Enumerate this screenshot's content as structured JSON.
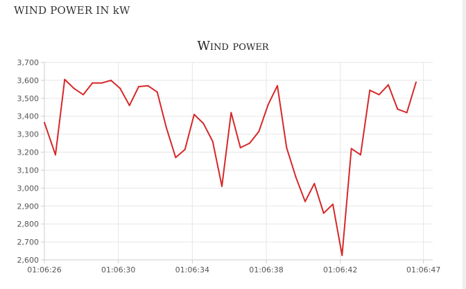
{
  "panel": {
    "title": "WIND POWER IN kW"
  },
  "chart_data": {
    "type": "line",
    "title": "Wind power",
    "xlabel": "",
    "ylabel": "",
    "ylim": [
      2600,
      3700
    ],
    "yticks": [
      3700,
      3600,
      3500,
      3400,
      3300,
      3200,
      3100,
      3000,
      2900,
      2800,
      2700,
      2600
    ],
    "ytick_labels": [
      "3,700",
      "3,600",
      "3,500",
      "3,400",
      "3,300",
      "3,200",
      "3,100",
      "3,000",
      "2,900",
      "2,800",
      "2,700",
      "2,600"
    ],
    "xlim": [
      0,
      21
    ],
    "xticks": [
      0,
      4,
      8,
      12,
      16,
      20.5
    ],
    "xtick_labels": [
      "01:06:26",
      "01:06:30",
      "01:06:34",
      "01:06:38",
      "01:06:42",
      "01:06:47"
    ],
    "grid": true,
    "line_color": "#d62728",
    "series": [
      {
        "x": [
          0,
          0.6,
          1.1,
          1.6,
          2.1,
          2.6,
          3.1,
          3.6,
          4.1,
          4.6,
          5.1,
          5.6,
          6.1,
          6.6,
          7.1,
          7.6,
          8.1,
          8.6,
          9.1,
          9.6,
          10.1,
          10.6,
          11.1,
          11.6,
          12.1,
          12.6,
          13.1,
          13.6,
          14.1,
          14.6,
          15.1,
          15.6,
          16.1,
          16.6,
          17.1,
          17.6,
          18.1,
          18.6,
          19.1,
          19.6,
          20.1
        ],
        "values": [
          3365,
          3185,
          3605,
          3555,
          3520,
          3585,
          3585,
          3600,
          3555,
          3460,
          3565,
          3570,
          3535,
          3335,
          3170,
          3215,
          3410,
          3360,
          3260,
          3010,
          3420,
          3225,
          3250,
          3315,
          3465,
          3570,
          3225,
          3060,
          2925,
          3025,
          2860,
          2910,
          2625,
          3220,
          3185,
          3545,
          3520,
          3575,
          3440,
          3420,
          3590
        ]
      }
    ]
  }
}
